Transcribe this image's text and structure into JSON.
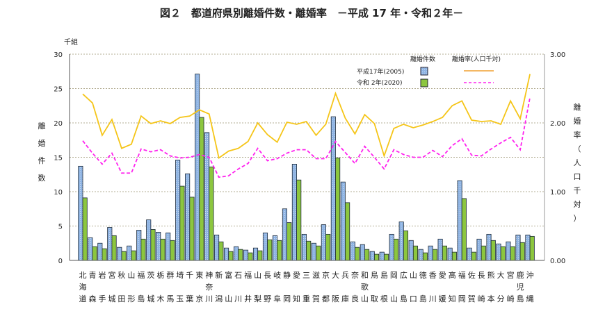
{
  "chart_data": {
    "type": "bar",
    "title": "図２　都道府県別離婚件数・離婚率　－平成 17 年・令和２年－",
    "y_unit": "千組",
    "ylabel": "離婚件数",
    "y2label": "離婚率（人口千対）",
    "ylim": [
      0,
      30
    ],
    "y2lim": [
      0,
      3
    ],
    "yticks": [
      "0",
      "5",
      "10",
      "15",
      "20",
      "25",
      "30"
    ],
    "y2ticks": [
      "0.00",
      "1.00",
      "2.00",
      "3.00"
    ],
    "grid": true,
    "legend": {
      "bars_header": "離婚件数",
      "lines_header": "離婚率(人口千対)",
      "row1": "平成17年(2005)",
      "row2": "令和 2年(2020)",
      "placement": "top-right"
    },
    "categories": [
      "北海道",
      "青森",
      "岩手",
      "宮城",
      "秋田",
      "山形",
      "福島",
      "茨城",
      "栃木",
      "群馬",
      "埼玉",
      "千葉",
      "東京",
      "神奈川",
      "新潟",
      "富山",
      "石川",
      "福井",
      "山梨",
      "長野",
      "岐阜",
      "静岡",
      "愛知",
      "三重",
      "滋賀",
      "京都",
      "大阪",
      "兵庫",
      "奈良",
      "和歌山",
      "鳥取",
      "島根",
      "岡山",
      "広島",
      "山口",
      "徳島",
      "香川",
      "愛媛",
      "高知",
      "福岡",
      "佐賀",
      "長崎",
      "熊本",
      "大分",
      "宮崎",
      "鹿児島",
      "沖縄"
    ],
    "series": [
      {
        "name": "離婚件数 平成17年(2005)",
        "type": "bar",
        "axis": "left",
        "color": "#8fb4e3",
        "values": [
          13.7,
          3.3,
          2.5,
          4.8,
          1.9,
          2.1,
          4.4,
          5.9,
          4.1,
          4.0,
          14.6,
          12.6,
          27.1,
          18.6,
          3.7,
          1.8,
          2.0,
          1.5,
          1.8,
          4.0,
          3.6,
          7.5,
          14.0,
          3.8,
          2.5,
          5.2,
          20.9,
          11.4,
          2.7,
          2.3,
          1.3,
          1.2,
          3.8,
          5.6,
          2.9,
          1.6,
          2.1,
          3.1,
          1.8,
          11.6,
          1.8,
          3.1,
          3.8,
          2.4,
          2.7,
          3.7,
          3.7
        ]
      },
      {
        "name": "離婚件数 令和2年(2020)",
        "type": "bar",
        "axis": "left",
        "color": "#8cc63f",
        "values": [
          9.1,
          2.0,
          1.7,
          3.6,
          1.3,
          1.4,
          3.1,
          4.5,
          3.1,
          2.9,
          10.8,
          9.2,
          20.8,
          13.6,
          2.7,
          1.3,
          1.6,
          1.1,
          1.4,
          3.0,
          2.9,
          5.5,
          11.7,
          2.8,
          2.1,
          3.8,
          14.9,
          8.4,
          1.9,
          1.6,
          0.9,
          0.9,
          3.1,
          4.3,
          2.1,
          1.1,
          1.6,
          2.1,
          1.2,
          9.0,
          1.2,
          2.1,
          2.9,
          2.0,
          2.0,
          2.6,
          3.5
        ]
      },
      {
        "name": "離婚率 平成17年(2005)",
        "type": "line",
        "axis": "right",
        "color": "#f5c518",
        "values": [
          2.42,
          2.29,
          1.82,
          2.05,
          1.63,
          1.69,
          2.1,
          1.99,
          2.03,
          1.99,
          2.08,
          2.1,
          2.19,
          2.13,
          1.49,
          1.59,
          1.63,
          1.73,
          2.0,
          1.83,
          1.72,
          2.01,
          1.98,
          2.02,
          1.82,
          1.98,
          2.43,
          2.07,
          1.84,
          2.12,
          1.99,
          1.52,
          1.92,
          1.98,
          1.93,
          1.97,
          2.02,
          2.08,
          2.25,
          2.32,
          2.04,
          2.02,
          2.03,
          1.98,
          2.32,
          2.06,
          2.71
        ]
      },
      {
        "name": "離婚率 令和2年(2020)",
        "type": "line",
        "axis": "right",
        "color": "#ff22ee",
        "dashed": true,
        "values": [
          1.74,
          1.56,
          1.4,
          1.56,
          1.27,
          1.27,
          1.62,
          1.58,
          1.61,
          1.52,
          1.49,
          1.5,
          1.54,
          1.5,
          1.21,
          1.23,
          1.33,
          1.41,
          1.63,
          1.45,
          1.48,
          1.56,
          1.61,
          1.61,
          1.48,
          1.48,
          1.73,
          1.57,
          1.41,
          1.66,
          1.5,
          1.33,
          1.61,
          1.54,
          1.5,
          1.5,
          1.6,
          1.51,
          1.67,
          1.77,
          1.53,
          1.52,
          1.62,
          1.71,
          1.79,
          1.61,
          2.37
        ]
      }
    ]
  }
}
